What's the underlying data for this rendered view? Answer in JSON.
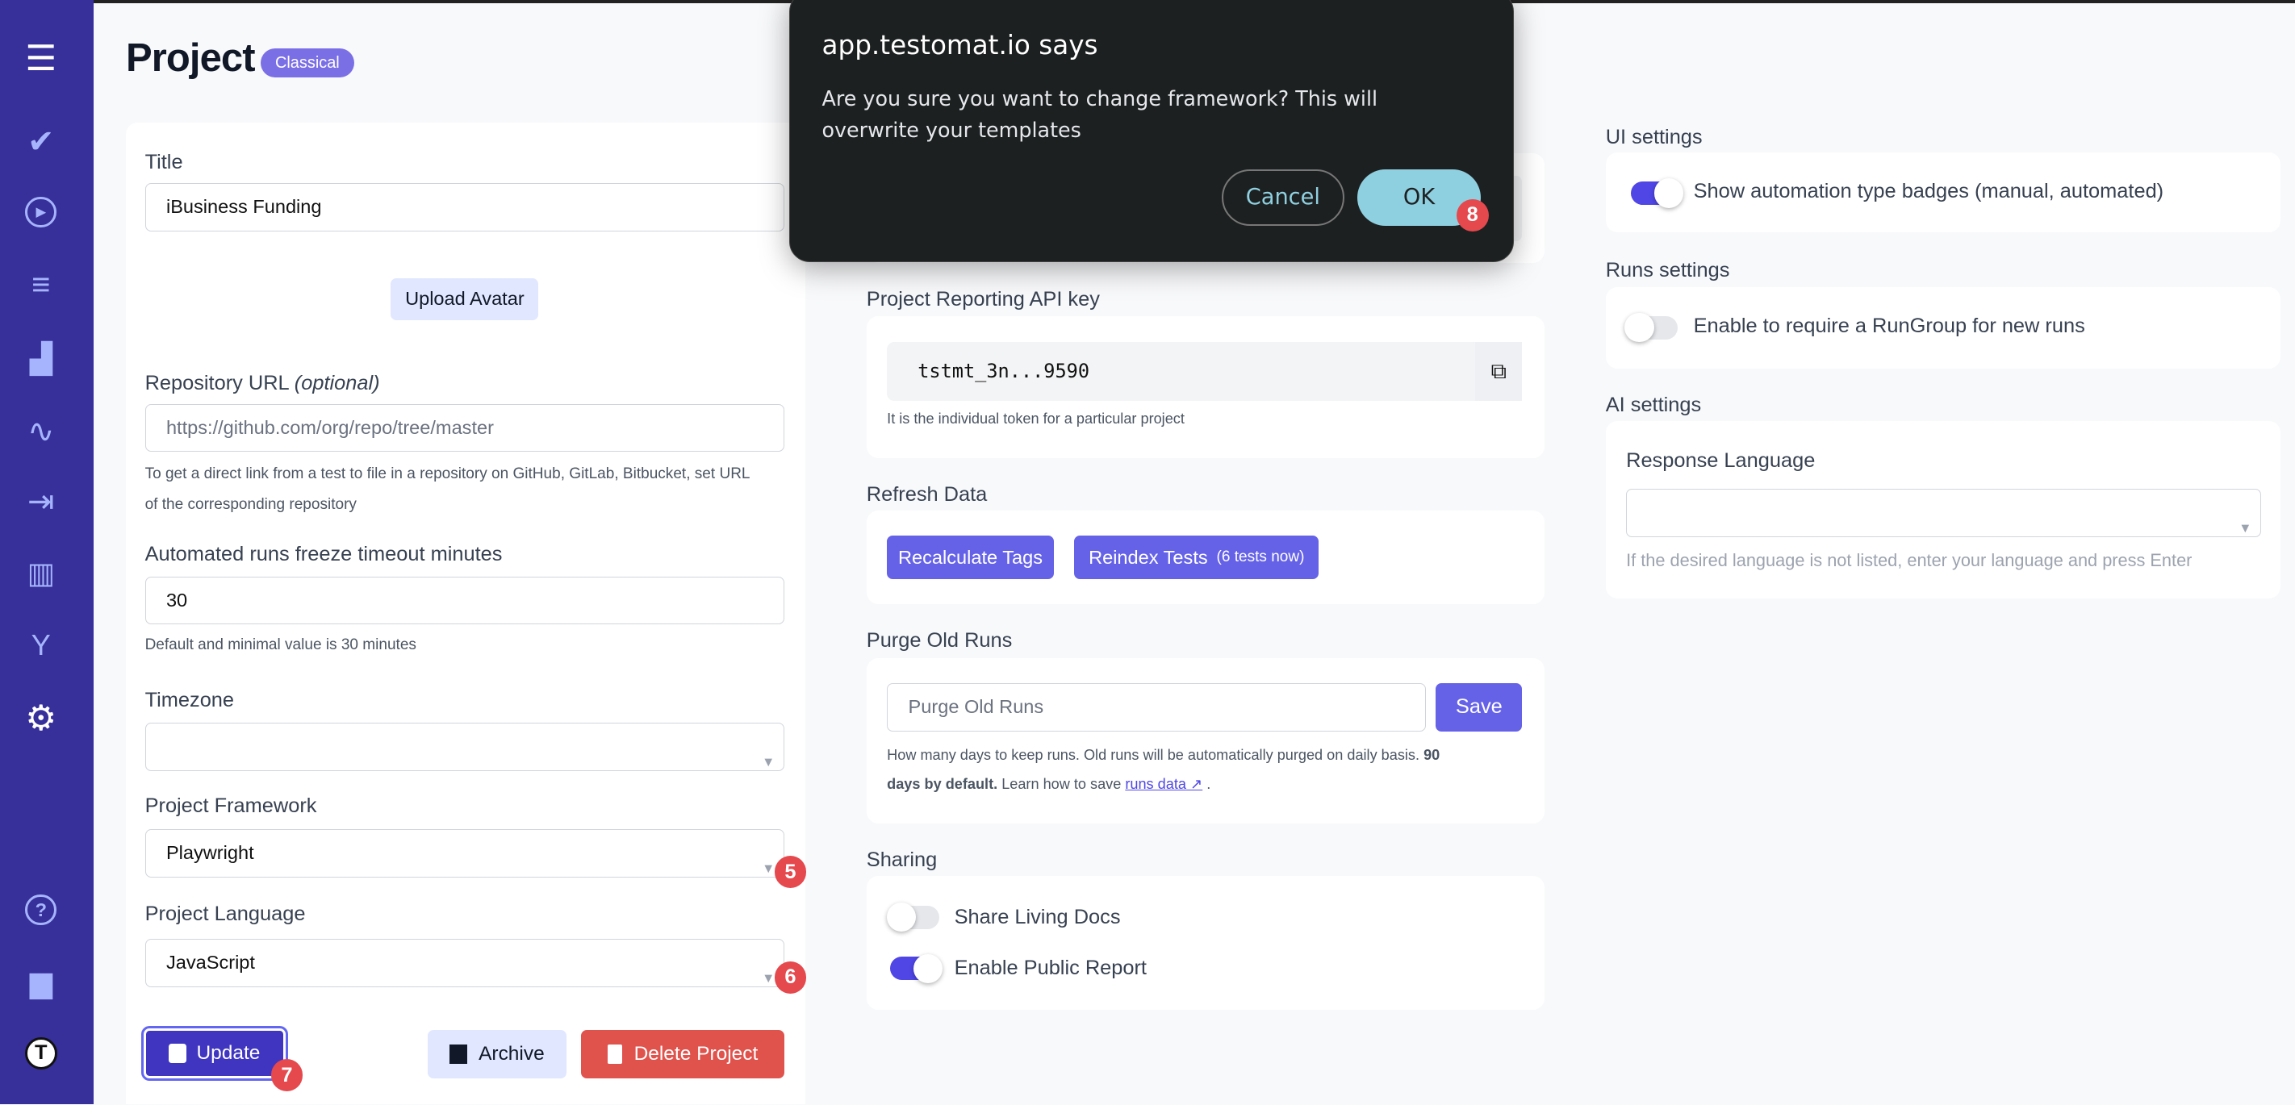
{
  "sidebar": {
    "items": [
      {
        "icon": "menu-icon",
        "glyph": "☰"
      },
      {
        "icon": "check-icon",
        "glyph": "✔"
      },
      {
        "icon": "play-circle-icon",
        "glyph": "▶"
      },
      {
        "icon": "checklist-icon",
        "glyph": "≡"
      },
      {
        "icon": "steps-icon",
        "glyph": "▟"
      },
      {
        "icon": "pulse-icon",
        "glyph": "∿"
      },
      {
        "icon": "import-icon",
        "glyph": "⇥"
      },
      {
        "icon": "analytics-icon",
        "glyph": "▥"
      },
      {
        "icon": "branch-icon",
        "glyph": "Y"
      },
      {
        "icon": "gear-icon",
        "glyph": "⚙"
      },
      {
        "icon": "help-icon",
        "glyph": "?"
      },
      {
        "icon": "projects-folder-icon",
        "glyph": "▆"
      },
      {
        "icon": "testomat-logo-icon",
        "glyph": "T"
      }
    ]
  },
  "header": {
    "title": "Project",
    "badge": "Classical"
  },
  "left": {
    "title_label": "Title",
    "title_value": "iBusiness Funding",
    "upload_avatar": "Upload Avatar",
    "repo_label": "Repository URL",
    "repo_optional": "(optional)",
    "repo_placeholder": "https://github.com/org/repo/tree/master",
    "repo_help_1": "To get a direct link from a test to file in a repository on GitHub, GitLab, Bitbucket, set URL",
    "repo_help_2": "of the corresponding repository",
    "freeze_label": "Automated runs freeze timeout minutes",
    "freeze_value": "30",
    "freeze_help": "Default and minimal value is 30 minutes",
    "timezone_label": "Timezone",
    "timezone_value": "",
    "framework_label": "Project Framework",
    "framework_value": "Playwright",
    "language_label": "Project Language",
    "language_value": "JavaScript",
    "update": "Update",
    "archive": "Archive",
    "delete": "Delete Project"
  },
  "markers": {
    "m5": "5",
    "m6": "6",
    "m7": "7",
    "m8": "8"
  },
  "middle": {
    "api_label": "Project Reporting API key",
    "api_key": "tstmt_3n...9590",
    "api_help": "It is the individual token for a particular project",
    "refresh_label": "Refresh Data",
    "recalc": "Recalculate Tags",
    "reindex": "Reindex Tests",
    "reindex_count": "(6 tests now)",
    "purge_label": "Purge Old Runs",
    "purge_placeholder": "Purge Old Runs",
    "purge_save": "Save",
    "purge_help_1": "How many days to keep runs. Old runs will be automatically purged on daily basis.",
    "purge_help_bold_1": "90",
    "purge_help_bold_2": "days by default.",
    "purge_help_2": "Learn how to save",
    "purge_link": "runs data",
    "purge_help_end": ".",
    "sharing_label": "Sharing",
    "share_docs": "Share Living Docs",
    "share_docs_on": false,
    "public_report": "Enable Public Report",
    "public_report_on": true
  },
  "right": {
    "ui_label": "UI settings",
    "ui_toggle": "Show automation type badges (manual, automated)",
    "ui_toggle_on": true,
    "runs_label": "Runs settings",
    "runs_toggle": "Enable to require a RunGroup for new runs",
    "runs_toggle_on": false,
    "ai_label": "AI settings",
    "response_label": "Response Language",
    "response_value": "",
    "response_hint": "If the desired language is not listed, enter your language and press Enter"
  },
  "dialog": {
    "title": "app.testomat.io says",
    "message": "Are you sure you want to change framework? This will overwrite your templates",
    "cancel": "Cancel",
    "ok": "OK"
  },
  "colors": {
    "sidebar": "#372f9a",
    "accent": "#6562e8",
    "danger": "#e0524c",
    "dialog_ok": "#8fd0e0"
  }
}
